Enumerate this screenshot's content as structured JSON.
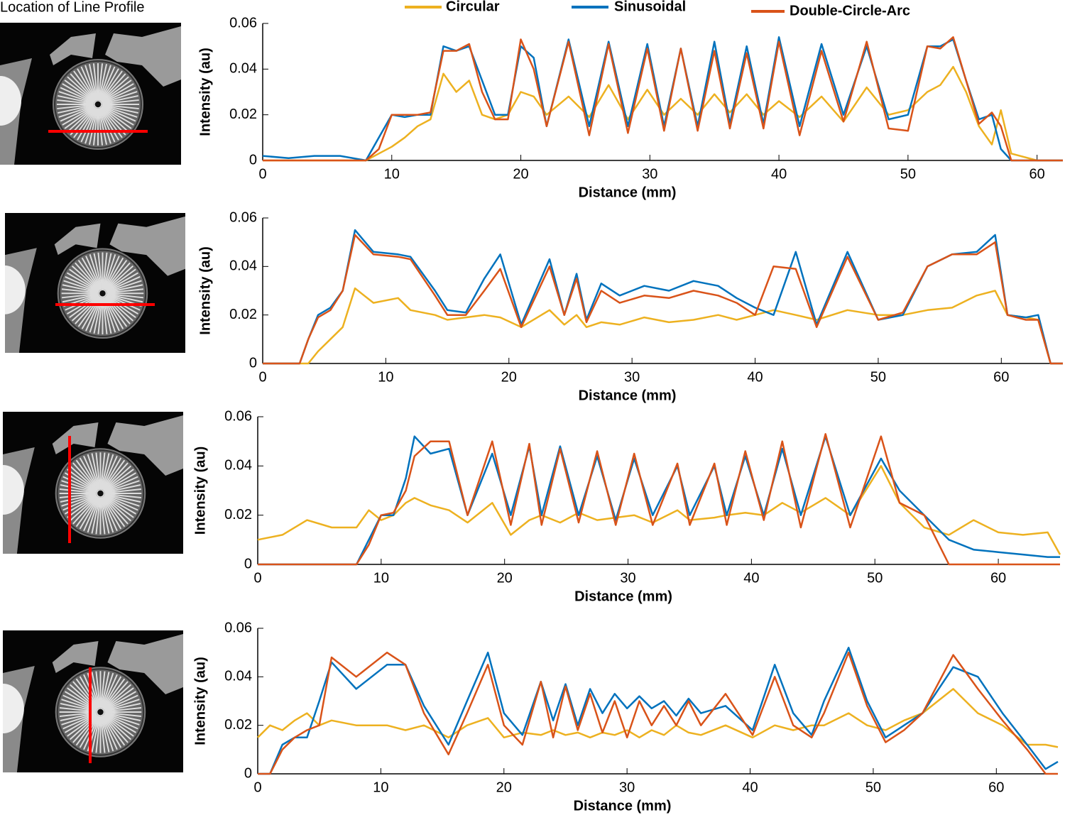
{
  "panel_label": "Location of Line Profile",
  "chart_data": [
    {
      "type": "line",
      "xlabel": "Distance (mm)",
      "ylabel": "Intensity (au)",
      "x": [
        0,
        2,
        4,
        6,
        8,
        9,
        10,
        11,
        12,
        13,
        14,
        15,
        16,
        17,
        18,
        19,
        20,
        21,
        22,
        23.7,
        25.3,
        26.8,
        28.3,
        29.8,
        31.1,
        32.4,
        33.7,
        35,
        36.2,
        37.5,
        38.8,
        40,
        41.6,
        43.3,
        45,
        46.8,
        48.5,
        50,
        51.5,
        52.5,
        53.5,
        54.5,
        55.5,
        56.5,
        57.2,
        58,
        60,
        62
      ],
      "series": [
        {
          "name": "Circular",
          "color": "#edb120",
          "values": [
            0,
            0,
            0,
            0,
            0,
            0.003,
            0.006,
            0.01,
            0.015,
            0.018,
            0.038,
            0.03,
            0.035,
            0.02,
            0.018,
            0.02,
            0.03,
            0.028,
            0.02,
            0.028,
            0.019,
            0.033,
            0.018,
            0.031,
            0.02,
            0.027,
            0.02,
            0.029,
            0.021,
            0.029,
            0.02,
            0.026,
            0.019,
            0.028,
            0.017,
            0.032,
            0.02,
            0.022,
            0.03,
            0.033,
            0.041,
            0.03,
            0.015,
            0.007,
            0.022,
            0.003,
            0,
            0
          ]
        },
        {
          "name": "Sinusoidal",
          "color": "#0072bd",
          "values": [
            0.002,
            0.001,
            0.002,
            0.002,
            0,
            0.01,
            0.02,
            0.019,
            0.02,
            0.02,
            0.05,
            0.048,
            0.05,
            0.035,
            0.02,
            0.02,
            0.05,
            0.045,
            0.015,
            0.053,
            0.015,
            0.052,
            0.015,
            0.051,
            0.015,
            0.049,
            0.015,
            0.052,
            0.016,
            0.05,
            0.016,
            0.054,
            0.015,
            0.051,
            0.02,
            0.05,
            0.018,
            0.02,
            0.05,
            0.05,
            0.053,
            0.035,
            0.018,
            0.02,
            0.005,
            0,
            0,
            0
          ]
        },
        {
          "name": "Double-Circle-Arc",
          "color": "#d95319",
          "values": [
            0,
            0,
            0,
            0,
            0,
            0.005,
            0.02,
            0.02,
            0.02,
            0.021,
            0.048,
            0.048,
            0.051,
            0.03,
            0.018,
            0.018,
            0.053,
            0.04,
            0.015,
            0.052,
            0.011,
            0.051,
            0.012,
            0.049,
            0.013,
            0.049,
            0.013,
            0.048,
            0.014,
            0.047,
            0.014,
            0.052,
            0.011,
            0.048,
            0.017,
            0.052,
            0.014,
            0.013,
            0.05,
            0.049,
            0.054,
            0.035,
            0.016,
            0.021,
            0.015,
            0,
            0,
            0
          ]
        }
      ],
      "xlim": [
        0,
        62
      ],
      "ylim": [
        0,
        0.06
      ],
      "xticks": [
        0,
        10,
        20,
        30,
        40,
        50,
        60
      ],
      "yticks": [
        0,
        0.02,
        0.04,
        0.06
      ]
    },
    {
      "type": "line",
      "xlabel": "Distance (mm)",
      "ylabel": "Intensity (au)",
      "x": [
        0,
        3,
        3.7,
        4.5,
        5.5,
        6.5,
        7.5,
        9,
        11,
        12,
        14,
        15,
        16.5,
        18,
        19.3,
        21,
        23.3,
        24.5,
        25.5,
        26.3,
        27.5,
        29,
        31,
        33,
        35,
        37,
        38.5,
        40,
        41.5,
        43.3,
        45,
        47.5,
        50,
        52,
        54,
        56,
        58,
        59.5,
        60.5,
        62,
        63,
        64,
        65
      ],
      "series": [
        {
          "name": "Circular",
          "color": "#edb120",
          "values": [
            0,
            0,
            0,
            0.005,
            0.01,
            0.015,
            0.031,
            0.025,
            0.027,
            0.022,
            0.02,
            0.018,
            0.019,
            0.02,
            0.019,
            0.015,
            0.022,
            0.016,
            0.02,
            0.015,
            0.017,
            0.016,
            0.019,
            0.017,
            0.018,
            0.02,
            0.018,
            0.02,
            0.022,
            0.02,
            0.018,
            0.022,
            0.02,
            0.02,
            0.022,
            0.023,
            0.028,
            0.03,
            0.02,
            0.019,
            0.018,
            0,
            0
          ]
        },
        {
          "name": "Sinusoidal",
          "color": "#0072bd",
          "values": [
            0,
            0,
            0.01,
            0.02,
            0.023,
            0.03,
            0.055,
            0.046,
            0.045,
            0.044,
            0.03,
            0.022,
            0.021,
            0.035,
            0.045,
            0.016,
            0.043,
            0.02,
            0.037,
            0.018,
            0.033,
            0.028,
            0.032,
            0.03,
            0.034,
            0.032,
            0.027,
            0.023,
            0.02,
            0.046,
            0.016,
            0.046,
            0.018,
            0.02,
            0.04,
            0.045,
            0.046,
            0.053,
            0.02,
            0.019,
            0.02,
            0,
            0
          ]
        },
        {
          "name": "Double-Circle-Arc",
          "color": "#d95319",
          "values": [
            0,
            0,
            0.01,
            0.019,
            0.022,
            0.03,
            0.053,
            0.045,
            0.044,
            0.043,
            0.028,
            0.02,
            0.02,
            0.03,
            0.039,
            0.015,
            0.04,
            0.02,
            0.035,
            0.017,
            0.03,
            0.025,
            0.028,
            0.027,
            0.03,
            0.028,
            0.025,
            0.02,
            0.04,
            0.039,
            0.015,
            0.044,
            0.018,
            0.021,
            0.04,
            0.045,
            0.045,
            0.05,
            0.02,
            0.018,
            0.018,
            0,
            0
          ]
        }
      ],
      "xlim": [
        0,
        65
      ],
      "ylim": [
        0,
        0.06
      ],
      "xticks": [
        0,
        10,
        20,
        30,
        40,
        50,
        60
      ],
      "yticks": [
        0,
        0.02,
        0.04,
        0.06
      ]
    },
    {
      "type": "line",
      "xlabel": "Distance (mm)",
      "ylabel": "Intensity (au)",
      "x": [
        0,
        2,
        4,
        6,
        8,
        9,
        10,
        11,
        12,
        12.7,
        14,
        15.5,
        17,
        19,
        20.5,
        22,
        23,
        24.5,
        26,
        27.5,
        29,
        30.5,
        32,
        34,
        35,
        37,
        38,
        39.5,
        41,
        42.5,
        44,
        46,
        48,
        50.5,
        52,
        54,
        56,
        58,
        60,
        62,
        64,
        65
      ],
      "series": [
        {
          "name": "Circular",
          "color": "#edb120",
          "values": [
            0.01,
            0.012,
            0.018,
            0.015,
            0.015,
            0.022,
            0.018,
            0.02,
            0.025,
            0.027,
            0.024,
            0.022,
            0.017,
            0.025,
            0.012,
            0.018,
            0.02,
            0.017,
            0.021,
            0.018,
            0.019,
            0.02,
            0.017,
            0.022,
            0.018,
            0.019,
            0.02,
            0.021,
            0.02,
            0.025,
            0.021,
            0.027,
            0.02,
            0.04,
            0.025,
            0.015,
            0.012,
            0.018,
            0.013,
            0.012,
            0.013,
            0.004
          ]
        },
        {
          "name": "Sinusoidal",
          "color": "#0072bd",
          "values": [
            0,
            0,
            0,
            0,
            0,
            0.01,
            0.02,
            0.02,
            0.035,
            0.052,
            0.045,
            0.047,
            0.02,
            0.045,
            0.02,
            0.048,
            0.02,
            0.048,
            0.02,
            0.044,
            0.018,
            0.043,
            0.02,
            0.04,
            0.02,
            0.04,
            0.02,
            0.044,
            0.02,
            0.047,
            0.02,
            0.052,
            0.02,
            0.043,
            0.03,
            0.02,
            0.01,
            0.006,
            0.005,
            0.004,
            0.003,
            0.003
          ]
        },
        {
          "name": "Double-Circle-Arc",
          "color": "#d95319",
          "values": [
            0,
            0,
            0,
            0,
            0,
            0.008,
            0.02,
            0.021,
            0.03,
            0.044,
            0.05,
            0.05,
            0.02,
            0.05,
            0.016,
            0.049,
            0.016,
            0.047,
            0.017,
            0.046,
            0.016,
            0.045,
            0.016,
            0.041,
            0.016,
            0.041,
            0.016,
            0.046,
            0.018,
            0.05,
            0.015,
            0.053,
            0.015,
            0.052,
            0.025,
            0.02,
            0,
            0,
            0,
            0,
            0,
            0
          ]
        }
      ],
      "xlim": [
        0,
        65
      ],
      "ylim": [
        0,
        0.06
      ],
      "xticks": [
        0,
        10,
        20,
        30,
        40,
        50,
        60
      ],
      "yticks": [
        0,
        0.02,
        0.04,
        0.06
      ]
    },
    {
      "type": "line",
      "xlabel": "Distance (mm)",
      "ylabel": "Intensity (au)",
      "x": [
        0,
        1,
        2,
        3,
        4,
        5,
        6,
        8,
        10.5,
        12,
        13.5,
        15.5,
        17,
        18.7,
        20,
        21.5,
        23,
        24,
        25,
        26,
        27,
        28,
        29,
        30,
        31,
        32,
        33,
        34,
        35,
        36,
        38,
        40.2,
        42,
        43.5,
        45,
        46,
        48,
        49.5,
        51,
        52.5,
        54,
        56.5,
        58.5,
        60.5,
        62.5,
        64,
        65
      ],
      "series": [
        {
          "name": "Circular",
          "color": "#edb120",
          "values": [
            0.015,
            0.02,
            0.018,
            0.022,
            0.025,
            0.02,
            0.022,
            0.02,
            0.02,
            0.018,
            0.02,
            0.015,
            0.02,
            0.023,
            0.015,
            0.017,
            0.016,
            0.018,
            0.016,
            0.017,
            0.015,
            0.017,
            0.016,
            0.018,
            0.015,
            0.018,
            0.016,
            0.02,
            0.017,
            0.016,
            0.02,
            0.015,
            0.02,
            0.018,
            0.02,
            0.02,
            0.025,
            0.02,
            0.018,
            0.022,
            0.025,
            0.035,
            0.025,
            0.02,
            0.012,
            0.012,
            0.011
          ]
        },
        {
          "name": "Sinusoidal",
          "color": "#0072bd",
          "values": [
            0,
            0,
            0.012,
            0.015,
            0.015,
            0.03,
            0.046,
            0.035,
            0.045,
            0.045,
            0.028,
            0.012,
            0.03,
            0.05,
            0.025,
            0.016,
            0.038,
            0.022,
            0.037,
            0.02,
            0.035,
            0.025,
            0.033,
            0.027,
            0.032,
            0.027,
            0.03,
            0.024,
            0.031,
            0.025,
            0.028,
            0.018,
            0.045,
            0.025,
            0.016,
            0.03,
            0.052,
            0.03,
            0.015,
            0.02,
            0.025,
            0.044,
            0.04,
            0.025,
            0.012,
            0.002,
            0.005
          ]
        },
        {
          "name": "Double-Circle-Arc",
          "color": "#d95319",
          "values": [
            0,
            0,
            0.01,
            0.015,
            0.018,
            0.02,
            0.048,
            0.04,
            0.05,
            0.045,
            0.025,
            0.008,
            0.025,
            0.045,
            0.02,
            0.012,
            0.038,
            0.015,
            0.036,
            0.018,
            0.033,
            0.017,
            0.03,
            0.015,
            0.03,
            0.02,
            0.028,
            0.02,
            0.03,
            0.02,
            0.033,
            0.016,
            0.04,
            0.02,
            0.015,
            0.025,
            0.05,
            0.028,
            0.013,
            0.018,
            0.025,
            0.049,
            0.035,
            0.022,
            0.01,
            0,
            0
          ]
        }
      ],
      "xlim": [
        0,
        65
      ],
      "ylim": [
        0,
        0.06
      ],
      "xticks": [
        0,
        10,
        20,
        30,
        40,
        50,
        60
      ],
      "yticks": [
        0,
        0.02,
        0.04,
        0.06
      ]
    }
  ]
}
